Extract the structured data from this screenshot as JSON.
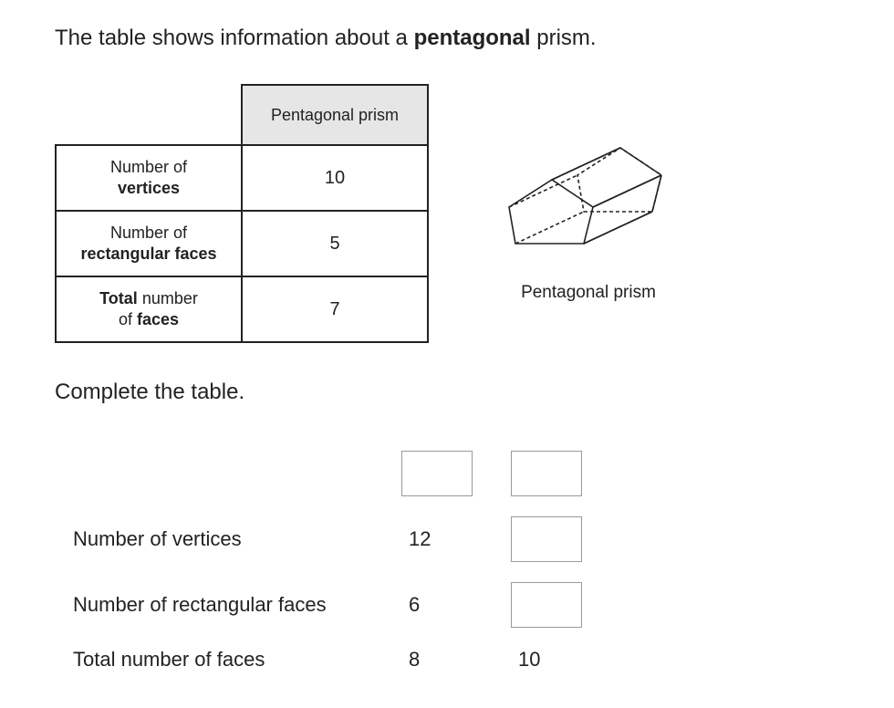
{
  "intro_pre": "The table shows information about a ",
  "intro_bold": "pentagonal",
  "intro_post": " prism.",
  "table": {
    "header": "Pentagonal prism",
    "rows": [
      {
        "label_pre": "Number of",
        "label_bold": "vertices",
        "value": "10"
      },
      {
        "label_pre": "Number of",
        "label_bold": "rectangular faces",
        "value": "5"
      },
      {
        "label_pre_bold": "Total",
        "label_mid": " number",
        "label_post": "of ",
        "label_bold2": "faces",
        "value": "7"
      }
    ]
  },
  "figure_caption": "Pentagonal prism",
  "complete_text": "Complete the table.",
  "answer_rows": [
    {
      "label": "Number of vertices",
      "col1": "12",
      "col2_is_box": true,
      "col2": ""
    },
    {
      "label": "Number of rectangular faces",
      "col1": "6",
      "col2_is_box": true,
      "col2": ""
    },
    {
      "label": "Total number of faces",
      "col1": "8",
      "col2_is_box": false,
      "col2": "10"
    }
  ],
  "prism_svg": {
    "stroke": "#222222",
    "stroke_width": 1.6,
    "dash": "4 3"
  }
}
